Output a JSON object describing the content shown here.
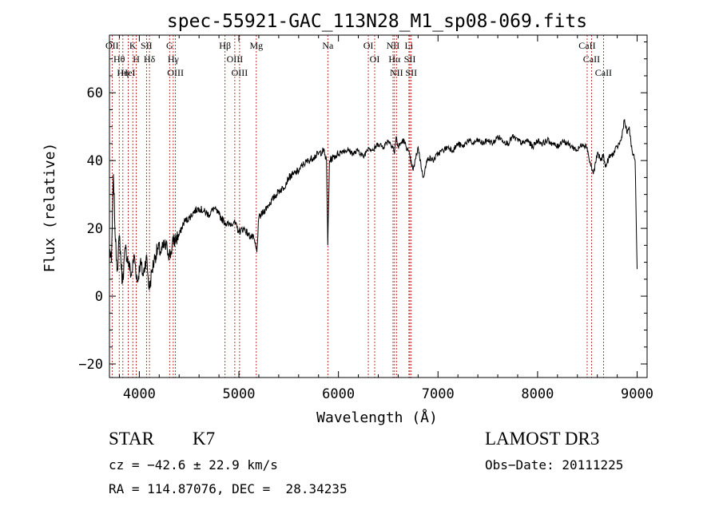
{
  "chart_data": {
    "type": "line",
    "title": "spec-55921-GAC_113N28_M1_sp08-069.fits",
    "xlabel": "Wavelength (Å)",
    "ylabel": "Flux (relative)",
    "xlim": [
      3700,
      9100
    ],
    "ylim": [
      -24,
      77
    ],
    "xticks": [
      4000,
      5000,
      6000,
      7000,
      8000,
      9000
    ],
    "xtick_labels": [
      "4000",
      "5000",
      "6000",
      "7000",
      "8000",
      "9000"
    ],
    "yticks": [
      -20,
      0,
      20,
      40,
      60
    ],
    "ytick_labels": [
      "−20",
      "0",
      "20",
      "40",
      "60"
    ],
    "grid": false,
    "series": [
      {
        "name": "spectrum",
        "color": "#000000",
        "x": [
          3700,
          3720,
          3740,
          3760,
          3780,
          3800,
          3830,
          3860,
          3890,
          3920,
          3950,
          3980,
          4010,
          4040,
          4070,
          4100,
          4130,
          4160,
          4190,
          4220,
          4250,
          4280,
          4310,
          4340,
          4370,
          4400,
          4450,
          4500,
          4550,
          4600,
          4650,
          4700,
          4750,
          4800,
          4850,
          4900,
          4950,
          5000,
          5050,
          5100,
          5150,
          5180,
          5200,
          5250,
          5300,
          5350,
          5400,
          5450,
          5500,
          5550,
          5600,
          5650,
          5700,
          5750,
          5800,
          5850,
          5880,
          5893,
          5910,
          5950,
          6000,
          6050,
          6100,
          6150,
          6200,
          6250,
          6300,
          6350,
          6400,
          6450,
          6500,
          6550,
          6563,
          6580,
          6600,
          6650,
          6700,
          6750,
          6800,
          6850,
          6900,
          6950,
          7000,
          7050,
          7100,
          7150,
          7200,
          7250,
          7300,
          7350,
          7400,
          7450,
          7500,
          7550,
          7600,
          7650,
          7700,
          7750,
          7800,
          7850,
          7900,
          7950,
          8000,
          8050,
          8100,
          8150,
          8200,
          8250,
          8300,
          8350,
          8400,
          8450,
          8498,
          8520,
          8542,
          8560,
          8600,
          8640,
          8662,
          8680,
          8720,
          8760,
          8800,
          8840,
          8870,
          8900,
          8920,
          8940,
          8960,
          8980,
          9000
        ],
        "y": [
          14,
          10,
          36,
          16,
          8,
          18,
          4,
          14,
          10,
          6,
          12,
          4,
          10,
          6,
          12,
          2,
          8,
          12,
          14,
          13,
          15,
          14,
          12,
          16,
          17,
          18,
          22,
          23,
          25,
          26,
          25,
          24,
          26,
          24,
          22,
          21,
          22,
          19,
          20,
          18,
          17,
          13,
          23,
          25,
          27,
          29,
          31,
          32,
          35,
          36,
          37,
          39,
          40,
          41,
          42,
          43,
          40,
          15,
          40,
          41,
          42,
          43,
          43,
          42,
          43,
          41,
          44,
          43,
          45,
          44,
          46,
          44,
          42,
          47,
          44,
          46,
          43,
          37,
          44,
          35,
          41,
          40,
          42,
          43,
          44,
          43,
          45,
          44,
          46,
          45,
          46,
          45,
          46,
          45,
          47,
          46,
          45,
          47,
          46,
          45,
          46,
          44,
          46,
          45,
          46,
          45,
          44,
          46,
          45,
          44,
          43,
          45,
          44,
          40,
          38,
          36,
          42,
          40,
          42,
          38,
          41,
          42,
          44,
          46,
          52,
          48,
          50,
          44,
          42,
          40,
          8
        ]
      }
    ],
    "lines": [
      {
        "label": "OII",
        "x": 3727
      },
      {
        "label": "Hθ",
        "x": 3798
      },
      {
        "label": "Hη",
        "x": 3835
      },
      {
        "label": "HeI",
        "x": 3889
      },
      {
        "label": "K",
        "x": 3934
      },
      {
        "label": "H",
        "x": 3969
      },
      {
        "label": "SII",
        "x": 4072
      },
      {
        "label": "Hδ",
        "x": 4102
      },
      {
        "label": "G",
        "x": 4304
      },
      {
        "label": "Hγ",
        "x": 4341
      },
      {
        "label": "OIII",
        "x": 4363
      },
      {
        "label": "Hβ",
        "x": 4861
      },
      {
        "label": "OIII",
        "x": 4959
      },
      {
        "label": "OIII",
        "x": 5007
      },
      {
        "label": "Mg",
        "x": 5175
      },
      {
        "label": "Na",
        "x": 5893
      },
      {
        "label": "OI",
        "x": 6300
      },
      {
        "label": "OI",
        "x": 6364
      },
      {
        "label": "NII",
        "x": 6548
      },
      {
        "label": "Hα",
        "x": 6563
      },
      {
        "label": "NII",
        "x": 6583
      },
      {
        "label": "Li",
        "x": 6708
      },
      {
        "label": "SII",
        "x": 6717
      },
      {
        "label": "SII",
        "x": 6731
      },
      {
        "label": "CaII",
        "x": 8498
      },
      {
        "label": "CaII",
        "x": 8542
      },
      {
        "label": "CaII",
        "x": 8662
      }
    ]
  },
  "info": {
    "class": "STAR",
    "subclass": "K7",
    "survey": "LAMOST DR3",
    "cz": "cz = −42.6 ± 22.9 km/s",
    "obs_date": "Obs−Date: 20111225",
    "coords": "RA = 114.87076, DEC =  28.34235"
  }
}
